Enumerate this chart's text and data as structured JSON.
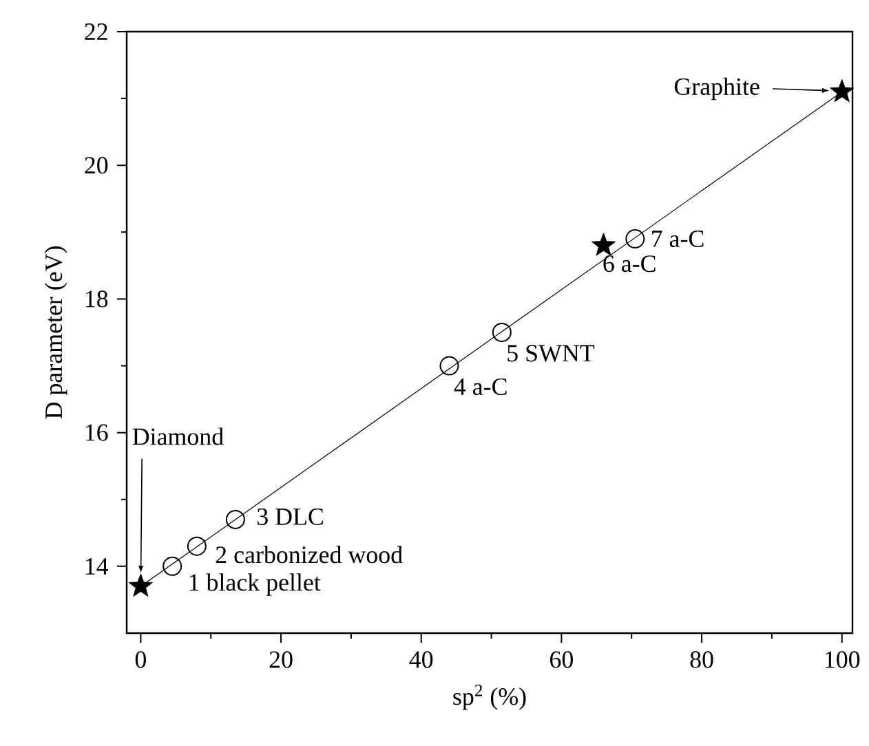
{
  "chart_data": {
    "type": "scatter",
    "xlabel": "sp$^{2}$ (%)",
    "ylabel": "D parameter (eV)",
    "xlim": [
      -2,
      101.5
    ],
    "ylim": [
      13,
      22
    ],
    "xticks": [
      0,
      20,
      40,
      60,
      80,
      100
    ],
    "yticks": [
      14,
      16,
      18,
      20,
      22
    ],
    "grid": false,
    "series": [
      {
        "type": "line",
        "color": "#000000",
        "marker": "none",
        "line_style": "solid",
        "x": [
          0,
          100
        ],
        "values": [
          13.7,
          21.1
        ]
      },
      {
        "color": "#000000",
        "marker": "star",
        "x": [
          0,
          66,
          100
        ],
        "values": [
          13.7,
          18.8,
          21.1
        ]
      },
      {
        "color": "#000000",
        "marker": "circle",
        "x": [
          4.5,
          8,
          13.5,
          44,
          51.5,
          70.5
        ],
        "values": [
          14.0,
          14.3,
          14.7,
          17.0,
          17.5,
          18.9
        ]
      }
    ],
    "annotations": [
      "Diamond",
      "Graphite",
      {
        "text": "1 black pellet",
        "x": 4.5,
        "y": 14.0
      },
      {
        "text": "2 carbonized wood",
        "x": 8,
        "y": 14.3
      },
      {
        "text": "3 DLC",
        "x": 13.5,
        "y": 14.7
      },
      {
        "text": "4 a-C",
        "x": 44,
        "y": 17.0
      },
      {
        "text": "5 SWNT",
        "x": 51.5,
        "y": 17.5
      },
      {
        "text": "6 a-C",
        "x": 66,
        "y": 18.8
      },
      {
        "text": "7 a-C",
        "x": 70.5,
        "y": 18.9
      }
    ]
  }
}
